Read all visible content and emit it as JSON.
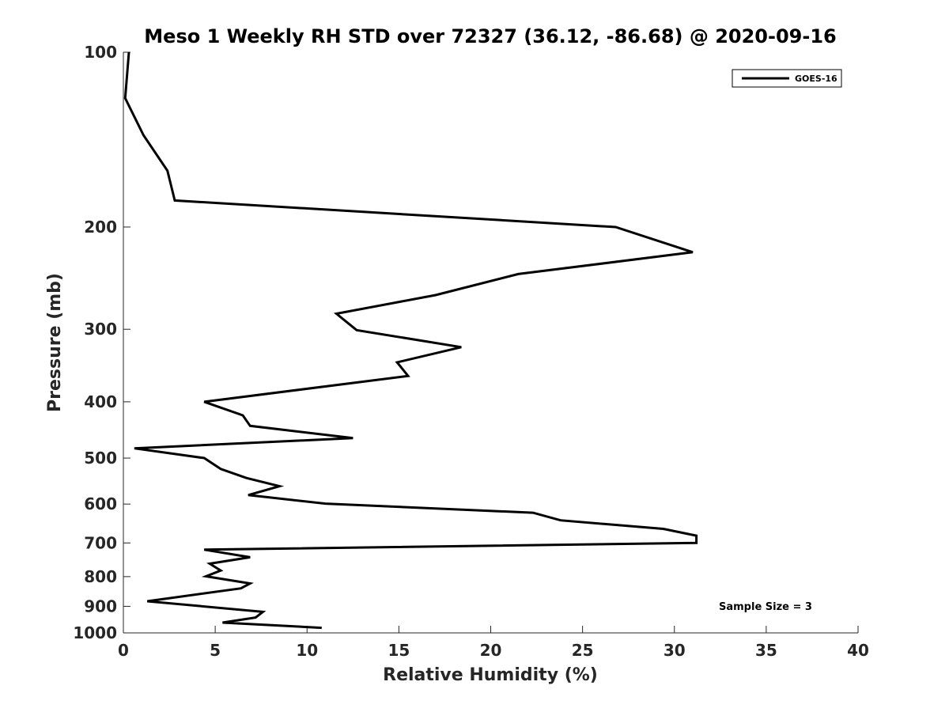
{
  "chart_data": {
    "type": "line",
    "title": "Meso 1 Weekly RH STD over 72327 (36.12, -86.68) @ 2020-09-16",
    "xlabel": "Relative Humidity (%)",
    "ylabel": "Pressure (mb)",
    "xlim": [
      0,
      40
    ],
    "ylim": [
      1000,
      100
    ],
    "yscale": "log",
    "x_ticks": [
      0,
      5,
      10,
      15,
      20,
      25,
      30,
      35,
      40
    ],
    "x_tick_labels": [
      "0",
      "5",
      "10",
      "15",
      "20",
      "25",
      "30",
      "35",
      "40"
    ],
    "y_ticks": [
      100,
      200,
      300,
      400,
      500,
      600,
      700,
      800,
      900,
      1000
    ],
    "y_tick_labels": [
      "100",
      "200",
      "300",
      "400",
      "500",
      "600",
      "700",
      "800",
      "900",
      "1000"
    ],
    "grid": false,
    "legend_position": "top-right",
    "series": [
      {
        "name": "GOES-16",
        "color": "#000000",
        "points": [
          [
            0.3,
            100
          ],
          [
            0.1,
            120
          ],
          [
            1.1,
            139
          ],
          [
            2.4,
            160
          ],
          [
            2.8,
            180
          ],
          [
            26.8,
            200
          ],
          [
            31.0,
            221
          ],
          [
            21.5,
            241
          ],
          [
            17.0,
            262
          ],
          [
            11.6,
            282
          ],
          [
            12.7,
            301
          ],
          [
            18.4,
            322
          ],
          [
            14.9,
            342
          ],
          [
            15.5,
            361
          ],
          [
            4.4,
            400
          ],
          [
            6.5,
            422
          ],
          [
            6.9,
            440
          ],
          [
            12.5,
            462
          ],
          [
            0.6,
            481
          ],
          [
            4.4,
            500
          ],
          [
            5.3,
            522
          ],
          [
            6.7,
            541
          ],
          [
            8.5,
            559
          ],
          [
            6.8,
            579
          ],
          [
            11.0,
            599
          ],
          [
            22.3,
            621
          ],
          [
            23.8,
            640
          ],
          [
            29.4,
            662
          ],
          [
            31.2,
            680
          ],
          [
            31.2,
            700
          ],
          [
            4.4,
            719
          ],
          [
            6.9,
            741
          ],
          [
            4.7,
            760
          ],
          [
            5.3,
            781
          ],
          [
            4.5,
            799
          ],
          [
            6.9,
            822
          ],
          [
            6.4,
            838
          ],
          [
            1.3,
            882
          ],
          [
            7.6,
            920
          ],
          [
            7.2,
            941
          ],
          [
            5.4,
            960
          ],
          [
            10.8,
            980
          ]
        ]
      }
    ],
    "annotation": "Sample Size = 3"
  }
}
